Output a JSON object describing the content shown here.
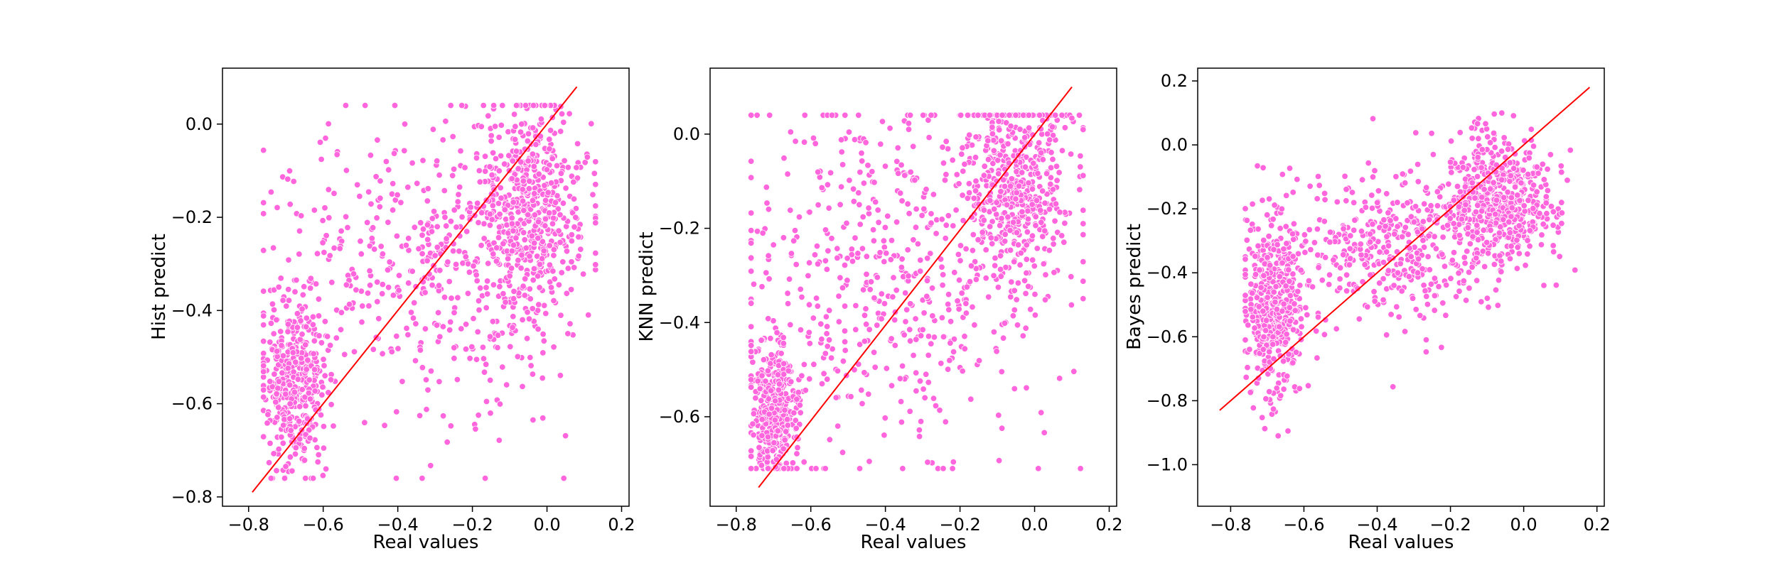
{
  "figure": {
    "background": "#ffffff",
    "point_color": "#ff66dd",
    "point_edge_color": "#ffffff",
    "line_color": "#ff0000"
  },
  "chart_data": [
    {
      "type": "scatter",
      "title": "",
      "xlabel": "Real values",
      "ylabel": "Hist predict",
      "xlim": [
        -0.87,
        0.22
      ],
      "ylim": [
        -0.82,
        0.12
      ],
      "xticks": [
        -0.8,
        -0.6,
        -0.4,
        -0.2,
        0.0,
        0.2
      ],
      "xtick_labels": [
        "−0.8",
        "−0.6",
        "−0.4",
        "−0.2",
        "0.0",
        "0.2"
      ],
      "yticks": [
        -0.8,
        -0.6,
        -0.4,
        -0.2,
        0.0
      ],
      "ytick_labels": [
        "−0.8",
        "−0.6",
        "−0.4",
        "−0.2",
        "0.0"
      ],
      "grid": false,
      "reference_line": {
        "x": [
          -0.79,
          0.08
        ],
        "y": [
          -0.79,
          0.08
        ]
      },
      "point_clusters": [
        {
          "cx": -0.68,
          "cy": -0.56,
          "sx": 0.04,
          "sy": 0.09,
          "n": 420
        },
        {
          "cx": -0.05,
          "cy": -0.17,
          "sx": 0.07,
          "sy": 0.12,
          "n": 520
        },
        {
          "cx": -0.3,
          "cy": -0.3,
          "sx": 0.22,
          "sy": 0.17,
          "n": 500
        }
      ],
      "point_xrange": [
        -0.76,
        0.13
      ],
      "point_yrange": [
        -0.76,
        0.04
      ],
      "seed": 11
    },
    {
      "type": "scatter",
      "title": "",
      "xlabel": "Real values",
      "ylabel": "KNN predict",
      "xlim": [
        -0.87,
        0.22
      ],
      "ylim": [
        -0.79,
        0.14
      ],
      "xticks": [
        -0.8,
        -0.6,
        -0.4,
        -0.2,
        0.0,
        0.2
      ],
      "xtick_labels": [
        "−0.8",
        "−0.6",
        "−0.4",
        "−0.2",
        "0.0",
        "0.2"
      ],
      "yticks": [
        -0.6,
        -0.4,
        -0.2,
        0.0
      ],
      "ytick_labels": [
        "−0.6",
        "−0.4",
        "−0.2",
        "0.0"
      ],
      "grid": false,
      "reference_line": {
        "x": [
          -0.74,
          0.1
        ],
        "y": [
          -0.75,
          0.1
        ]
      },
      "point_clusters": [
        {
          "cx": -0.7,
          "cy": -0.6,
          "sx": 0.03,
          "sy": 0.08,
          "n": 380
        },
        {
          "cx": -0.05,
          "cy": -0.1,
          "sx": 0.07,
          "sy": 0.11,
          "n": 520
        },
        {
          "cx": -0.4,
          "cy": -0.3,
          "sx": 0.22,
          "sy": 0.2,
          "n": 540
        }
      ],
      "point_xrange": [
        -0.76,
        0.13
      ],
      "point_yrange": [
        -0.71,
        0.04
      ],
      "seed": 23
    },
    {
      "type": "scatter",
      "title": "",
      "xlabel": "Real values",
      "ylabel": "Bayes predict",
      "xlim": [
        -0.89,
        0.22
      ],
      "ylim": [
        -1.13,
        0.24
      ],
      "xticks": [
        -0.8,
        -0.6,
        -0.4,
        -0.2,
        0.0,
        0.2
      ],
      "xtick_labels": [
        "−0.8",
        "−0.6",
        "−0.4",
        "−0.2",
        "0.0",
        "0.2"
      ],
      "yticks": [
        -1.0,
        -0.8,
        -0.6,
        -0.4,
        -0.2,
        0.0,
        0.2
      ],
      "ytick_labels": [
        "−1.0",
        "−0.8",
        "−0.6",
        "−0.4",
        "−0.2",
        "0.0",
        "0.2"
      ],
      "grid": false,
      "reference_line": {
        "x": [
          -0.83,
          0.18
        ],
        "y": [
          -0.83,
          0.18
        ]
      },
      "point_clusters": [
        {
          "cx": -0.68,
          "cy": -0.5,
          "sx": 0.04,
          "sy": 0.14,
          "n": 460
        },
        {
          "cx": -0.08,
          "cy": -0.17,
          "sx": 0.08,
          "sy": 0.1,
          "n": 560
        },
        {
          "cx": -0.35,
          "cy": -0.32,
          "sx": 0.17,
          "sy": 0.12,
          "n": 420
        }
      ],
      "point_xrange": [
        -0.76,
        0.14
      ],
      "point_yrange": [
        -1.1,
        0.1
      ],
      "seed": 37
    }
  ]
}
